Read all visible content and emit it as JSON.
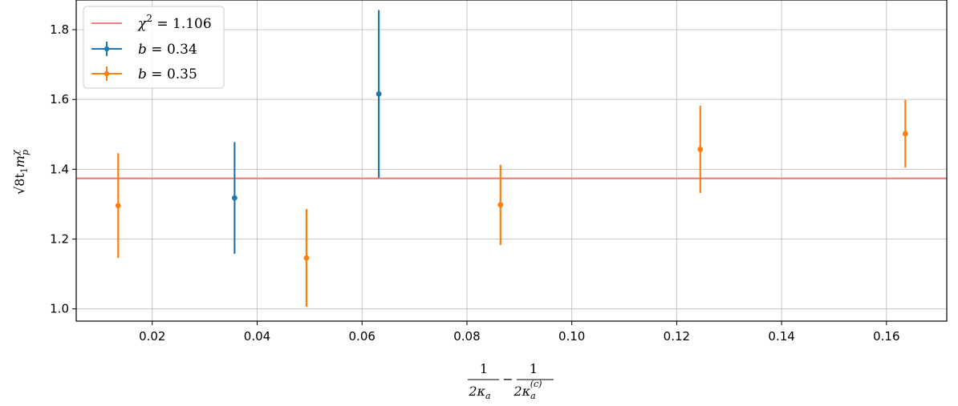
{
  "chart_data": {
    "type": "scatter",
    "xlim": [
      0.0055,
      0.1715
    ],
    "ylim": [
      0.965,
      1.885
    ],
    "x_ticks": [
      0.02,
      0.04,
      0.06,
      0.08,
      0.1,
      0.12,
      0.14,
      0.16
    ],
    "x_tick_labels": [
      "0.02",
      "0.04",
      "0.06",
      "0.08",
      "0.10",
      "0.12",
      "0.14",
      "0.16"
    ],
    "y_ticks": [
      1.0,
      1.2,
      1.4,
      1.6,
      1.8
    ],
    "y_tick_labels": [
      "1.0",
      "1.2",
      "1.4",
      "1.6",
      "1.8"
    ],
    "grid": true,
    "legend_position": "top-left",
    "xlabel": {
      "num1": "1",
      "den1_main": "2κ",
      "den1_sub": "a",
      "minus": "−",
      "num2": "1",
      "den2_main": "2κ",
      "den2_sub": "a",
      "den2_sup": "(c)"
    },
    "ylabel": {
      "main": "√8t",
      "sub": "1",
      "mid": "m",
      "sub2": "p",
      "sup2": "χ"
    },
    "fit_line": {
      "y": 1.374,
      "label": "χ",
      "sup": "2",
      "value_text": " = 1.106",
      "color": "#f08080"
    },
    "series": [
      {
        "name": "b = 0.34",
        "label_var": "b",
        "label_value": " = 0.34",
        "color": "#1f77b4",
        "points": [
          {
            "x": 0.0357,
            "y": 1.318,
            "err": 0.16
          },
          {
            "x": 0.0632,
            "y": 1.616,
            "err": 0.24
          }
        ]
      },
      {
        "name": "b = 0.35",
        "label_var": "b",
        "label_value": " = 0.35",
        "color": "#ff7f0e",
        "points": [
          {
            "x": 0.0135,
            "y": 1.296,
            "err": 0.15
          },
          {
            "x": 0.0494,
            "y": 1.146,
            "err": 0.14
          },
          {
            "x": 0.0864,
            "y": 1.298,
            "err": 0.115
          },
          {
            "x": 0.1245,
            "y": 1.457,
            "err": 0.125
          },
          {
            "x": 0.1636,
            "y": 1.502,
            "err": 0.097
          }
        ]
      }
    ]
  }
}
